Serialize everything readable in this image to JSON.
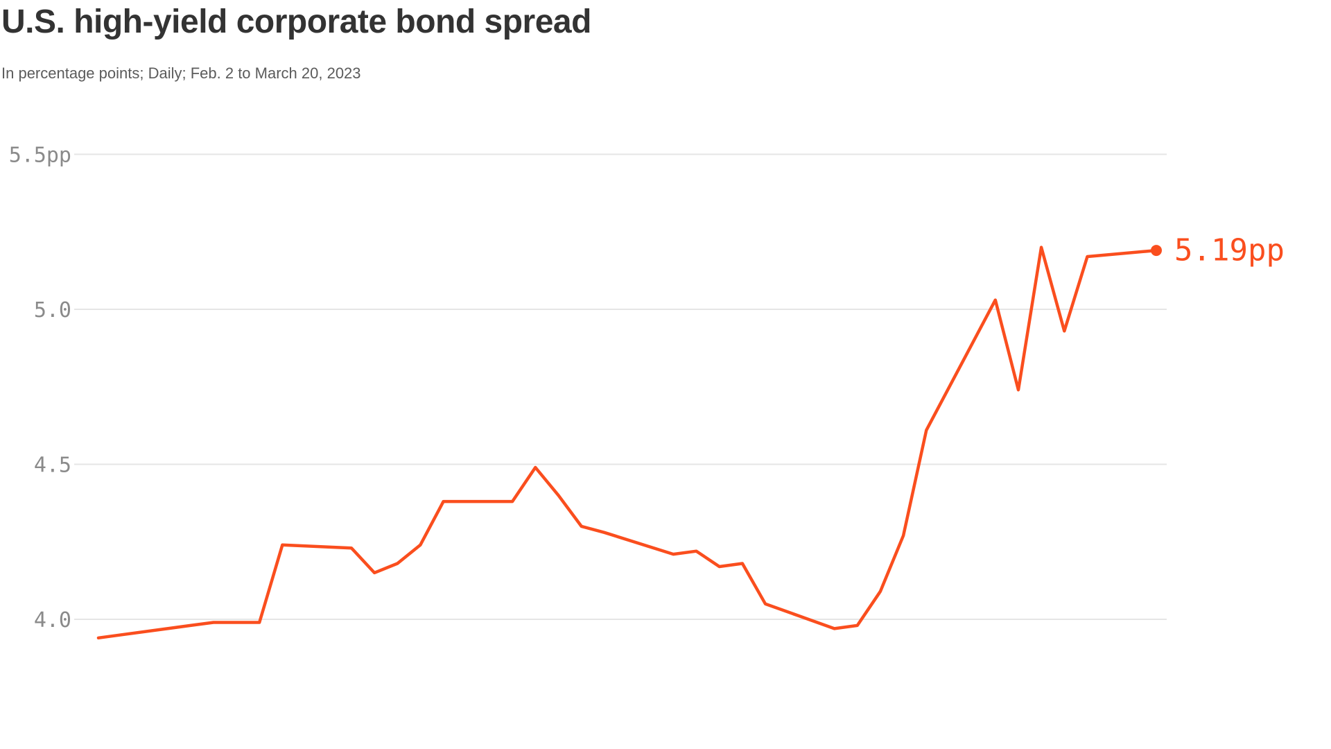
{
  "header": {
    "title": "U.S. high-yield corporate bond spread",
    "subtitle": "In percentage points; Daily; Feb. 2 to March 20, 2023"
  },
  "colors": {
    "line": "#FA4E1E",
    "marker": "#FA4E1E",
    "end_label": "#FA4E1E",
    "grid": "#E5E5E5",
    "tick_label": "#8A8A8A",
    "title": "#333333",
    "subtitle": "#5B5B5B",
    "background": "#FFFFFF"
  },
  "chart_data": {
    "type": "line",
    "title": "U.S. high-yield corporate bond spread",
    "subtitle": "In percentage points; Daily; Feb. 2 to March 20, 2023",
    "unit": "pp",
    "frequency": "Daily",
    "x_range": [
      "2023-02-02",
      "2023-03-20"
    ],
    "ylim": [
      3.8,
      5.6
    ],
    "grid": "horizontal-only",
    "legend": "none",
    "x_axis_labels": "none",
    "y_ticks": [
      {
        "value": 5.5,
        "label": "5.5pp"
      },
      {
        "value": 5.0,
        "label": "5.0"
      },
      {
        "value": 4.5,
        "label": "4.5"
      },
      {
        "value": 4.0,
        "label": "4.0"
      }
    ],
    "end_annotation": {
      "label": "5.19pp",
      "date": "2023-03-20",
      "value": 5.19
    },
    "series": [
      {
        "name": "U.S. high-yield corporate bond spread",
        "points": [
          {
            "date": "2023-02-02",
            "value": 3.94
          },
          {
            "date": "2023-02-03",
            "value": 3.95
          },
          {
            "date": "2023-02-06",
            "value": 3.98
          },
          {
            "date": "2023-02-07",
            "value": 3.99
          },
          {
            "date": "2023-02-08",
            "value": 3.99
          },
          {
            "date": "2023-02-09",
            "value": 3.99
          },
          {
            "date": "2023-02-10",
            "value": 4.24
          },
          {
            "date": "2023-02-13",
            "value": 4.23
          },
          {
            "date": "2023-02-14",
            "value": 4.15
          },
          {
            "date": "2023-02-15",
            "value": 4.18
          },
          {
            "date": "2023-02-16",
            "value": 4.24
          },
          {
            "date": "2023-02-17",
            "value": 4.38
          },
          {
            "date": "2023-02-20",
            "value": 4.38
          },
          {
            "date": "2023-02-21",
            "value": 4.49
          },
          {
            "date": "2023-02-22",
            "value": 4.4
          },
          {
            "date": "2023-02-23",
            "value": 4.3
          },
          {
            "date": "2023-02-24",
            "value": 4.28
          },
          {
            "date": "2023-02-27",
            "value": 4.21
          },
          {
            "date": "2023-02-28",
            "value": 4.22
          },
          {
            "date": "2023-03-01",
            "value": 4.17
          },
          {
            "date": "2023-03-02",
            "value": 4.18
          },
          {
            "date": "2023-03-03",
            "value": 4.05
          },
          {
            "date": "2023-03-06",
            "value": 3.97
          },
          {
            "date": "2023-03-07",
            "value": 3.98
          },
          {
            "date": "2023-03-08",
            "value": 4.09
          },
          {
            "date": "2023-03-09",
            "value": 4.27
          },
          {
            "date": "2023-03-10",
            "value": 4.61
          },
          {
            "date": "2023-03-13",
            "value": 5.03
          },
          {
            "date": "2023-03-14",
            "value": 4.74
          },
          {
            "date": "2023-03-15",
            "value": 5.2
          },
          {
            "date": "2023-03-16",
            "value": 4.93
          },
          {
            "date": "2023-03-17",
            "value": 5.17
          },
          {
            "date": "2023-03-20",
            "value": 5.19
          }
        ]
      }
    ]
  }
}
